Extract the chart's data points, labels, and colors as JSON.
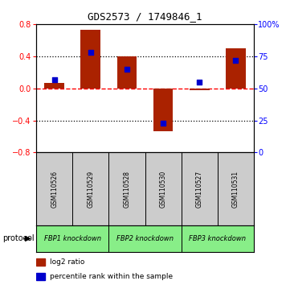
{
  "title": "GDS2573 / 1749846_1",
  "samples": [
    "GSM110526",
    "GSM110529",
    "GSM110528",
    "GSM110530",
    "GSM110527",
    "GSM110531"
  ],
  "log2_ratio": [
    0.07,
    0.73,
    0.4,
    -0.53,
    -0.02,
    0.5
  ],
  "percentile_rank": [
    57,
    78,
    65,
    23,
    55,
    72
  ],
  "groups": [
    {
      "label": "FBP1 knockdown",
      "start": 0,
      "end": 1,
      "color": "#88ee88"
    },
    {
      "label": "FBP2 knockdown",
      "start": 2,
      "end": 3,
      "color": "#88ee88"
    },
    {
      "label": "FBP3 knockdown",
      "start": 4,
      "end": 5,
      "color": "#88ee88"
    }
  ],
  "bar_color": "#aa2200",
  "dot_color": "#0000cc",
  "ylim_left": [
    -0.8,
    0.8
  ],
  "ylim_right": [
    0,
    100
  ],
  "yticks_left": [
    -0.8,
    -0.4,
    0.0,
    0.4,
    0.8
  ],
  "yticks_right": [
    0,
    25,
    50,
    75,
    100
  ],
  "ytick_labels_right": [
    "0",
    "25",
    "50",
    "75",
    "100%"
  ],
  "hline_y": 0.0,
  "dotted_lines": [
    -0.4,
    0.4
  ],
  "protocol_label": "protocol",
  "legend_bar_label": "log2 ratio",
  "legend_dot_label": "percentile rank within the sample",
  "bg_color": "#ffffff",
  "plot_bg_color": "#ffffff",
  "sample_box_color": "#cccccc",
  "bar_width": 0.55,
  "dot_size": 18
}
